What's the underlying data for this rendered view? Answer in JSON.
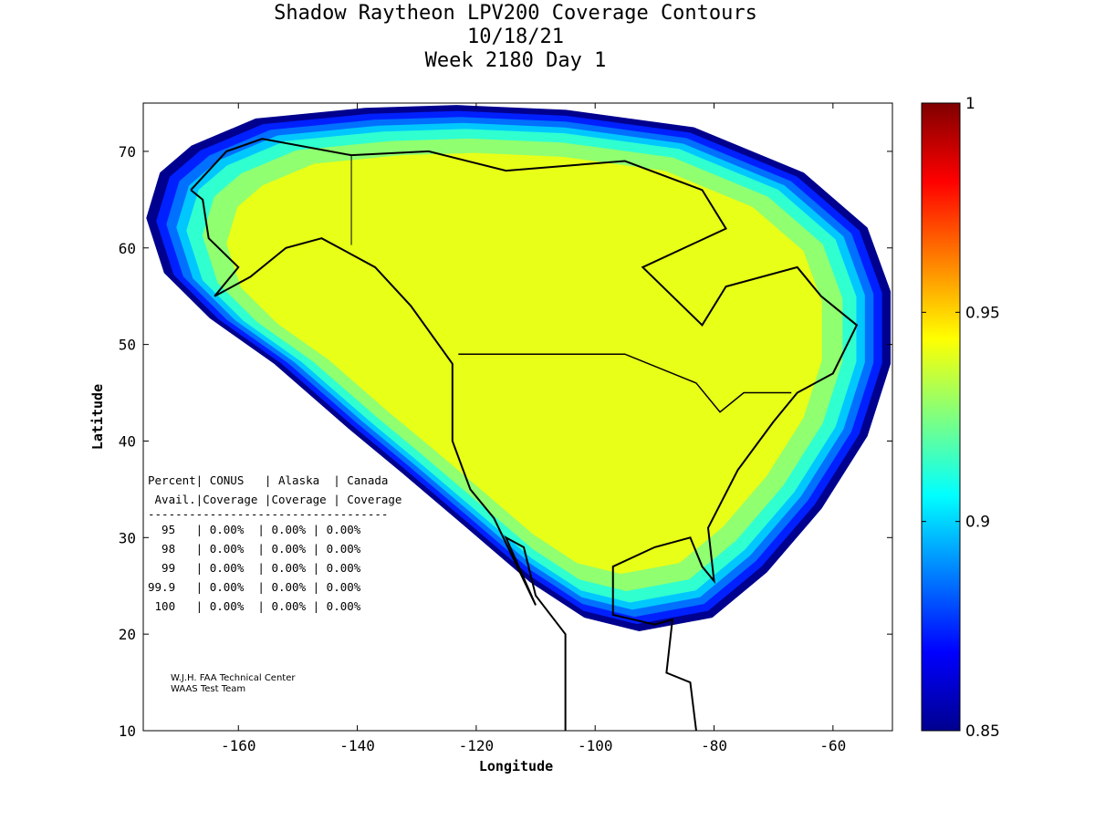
{
  "title": [
    "Shadow Raytheon LPV200 Coverage Contours",
    "10/18/21",
    "Week 2180 Day 1"
  ],
  "chart_data": {
    "type": "heatmap",
    "xlabel": "Longitude",
    "ylabel": "Latitude",
    "xlim": [
      -176,
      -50
    ],
    "ylim": [
      10,
      75
    ],
    "xticks": [
      -160,
      -140,
      -120,
      -100,
      -80,
      -60
    ],
    "yticks": [
      10,
      20,
      30,
      40,
      50,
      60,
      70
    ],
    "colorbar": {
      "range": [
        0.85,
        1
      ],
      "ticks": [
        "0.85",
        "0.9",
        "0.95",
        "1"
      ]
    },
    "coverage_boundary_lonlat": [
      [
        -175.5,
        63.1
      ],
      [
        -173.2,
        67.8
      ],
      [
        -167.9,
        70.6
      ],
      [
        -157.1,
        73.4
      ],
      [
        -138.7,
        74.5
      ],
      [
        -123.3,
        74.8
      ],
      [
        -104.9,
        74.3
      ],
      [
        -83.4,
        72.5
      ],
      [
        -64.9,
        67.8
      ],
      [
        -54.2,
        62.1
      ],
      [
        -50.3,
        55.5
      ],
      [
        -50.3,
        48.0
      ],
      [
        -54.2,
        40.5
      ],
      [
        -61.9,
        33.0
      ],
      [
        -71.1,
        26.4
      ],
      [
        -80.3,
        21.7
      ],
      [
        -92.6,
        20.3
      ],
      [
        -101.8,
        21.7
      ],
      [
        -111.0,
        25.4
      ],
      [
        -121.8,
        31.1
      ],
      [
        -132.5,
        36.7
      ],
      [
        -141.7,
        41.4
      ],
      [
        -154.0,
        48.0
      ],
      [
        -164.8,
        52.7
      ],
      [
        -172.5,
        57.4
      ]
    ],
    "bands": [
      {
        "value": 0.86,
        "color": "#00008f"
      },
      {
        "value": 0.87,
        "color": "#0020ff"
      },
      {
        "value": 0.885,
        "color": "#0070ff"
      },
      {
        "value": 0.9,
        "color": "#00c8ff"
      },
      {
        "value": 0.91,
        "color": "#30ffd0"
      },
      {
        "value": 0.925,
        "color": "#90ff70"
      },
      {
        "value": 0.94,
        "color": "#e8ff18"
      }
    ]
  },
  "table": {
    "header1": "Percent| CONUS   | Alaska  | Canada",
    "header2": " Avail.|Coverage |Coverage | Coverage",
    "separator": "-----------------------------------",
    "rows": [
      "  95   | 0.00%  | 0.00% | 0.00%",
      "  98   | 0.00%  | 0.00% | 0.00%",
      "  99   | 0.00%  | 0.00% | 0.00%",
      "99.9   | 0.00%  | 0.00% | 0.00%",
      " 100   | 0.00%  | 0.00% | 0.00%"
    ]
  },
  "credits": [
    "W.J.H. FAA Technical Center",
    "WAAS Test Team"
  ]
}
